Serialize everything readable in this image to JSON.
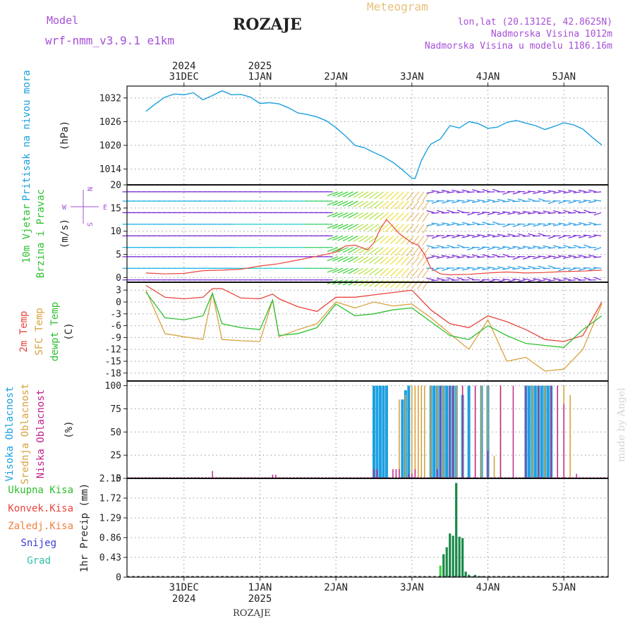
{
  "header": {
    "model_label": "Model",
    "model_name": "wrf-nmm_v3.9.1 e1km",
    "title": "ROZAJE",
    "product": "Meteogram",
    "coords": "lon,lat (20.1312E, 42.8625N)",
    "elevation": "Nadmorska Visina 1012m",
    "model_elevation": "Nadmorska Visina u modelu 1186.16m",
    "footer_station": "ROZAJE",
    "credit": "made by Angel"
  },
  "colors": {
    "pressure": "#1ca0e0",
    "temp2m": "#e8453c",
    "sfc": "#d8a23e",
    "dewpt": "#2fbf2f",
    "high_cloud": "#1ca0e0",
    "mid_cloud": "#d8a23e",
    "low_cloud": "#c0208a",
    "precip": "#1a8a4a",
    "wind_line": "#e8453c",
    "purple": "#a64fd6"
  },
  "time_axis": {
    "top_years": [
      "2024",
      "2025"
    ],
    "top_days": [
      "31DEC",
      "1JAN",
      "2JAN",
      "3JAN",
      "4JAN",
      "5JAN"
    ],
    "bottom_days": [
      "31DEC",
      "1JAN",
      "2JAN",
      "3JAN",
      "4JAN",
      "5JAN"
    ],
    "bottom_years": [
      "2024",
      "2025"
    ]
  },
  "chart_data": [
    {
      "type": "line",
      "panel": "pressure",
      "ylabel_lines": [
        "Pritisak na nivou mora"
      ],
      "unit": "(hPa)",
      "yticks": [
        "1032",
        "1026",
        "1020",
        "1014"
      ],
      "ylim": [
        1010,
        1035
      ],
      "x_hours": [
        0,
        3,
        6,
        9,
        12,
        15,
        18,
        21,
        24,
        27,
        30,
        33,
        36,
        39,
        42,
        45,
        48,
        51,
        54,
        57,
        60,
        63,
        66,
        69,
        72,
        75,
        78,
        81,
        84,
        85,
        87,
        89,
        90,
        93,
        96,
        99,
        102,
        105,
        108,
        111,
        114,
        117,
        120,
        123,
        126,
        129,
        132,
        135,
        138,
        141,
        144
      ],
      "values": [
        1028.6,
        1030.5,
        1032.2,
        1033.0,
        1032.8,
        1033.3,
        1031.5,
        1032.6,
        1033.8,
        1032.8,
        1032.9,
        1032.2,
        1030.6,
        1030.8,
        1030.5,
        1029.5,
        1028.2,
        1027.8,
        1027.2,
        1026.2,
        1024.5,
        1022.4,
        1020.0,
        1019.4,
        1018.2,
        1017.1,
        1015.7,
        1013.8,
        1011.7,
        1011.6,
        1016.2,
        1019.2,
        1020.3,
        1021.6,
        1025.0,
        1024.4,
        1026.0,
        1025.5,
        1024.3,
        1024.6,
        1025.8,
        1026.3,
        1025.6,
        1025.0,
        1024.0,
        1024.8,
        1025.7,
        1025.2,
        1024.1,
        1022.0,
        1020.1
      ]
    },
    {
      "type": "line",
      "panel": "wind",
      "ylabel_lines": [
        "10m Vjetar",
        "Brzina i Pravac"
      ],
      "unit": "(m/s)",
      "compass": [
        "W",
        "E",
        "N",
        "S"
      ],
      "yticks": [
        "20",
        "15",
        "10",
        "5",
        "0"
      ],
      "ylim": [
        -1,
        20
      ],
      "x_hours": [
        0,
        6,
        12,
        18,
        24,
        30,
        36,
        42,
        48,
        54,
        60,
        63,
        66,
        70,
        72,
        74,
        76,
        78,
        80,
        82,
        84,
        86,
        88,
        90,
        93,
        96,
        102,
        108,
        114,
        120,
        126,
        132,
        138,
        144
      ],
      "values": [
        1.0,
        0.8,
        0.9,
        1.5,
        1.6,
        1.8,
        2.5,
        3.0,
        3.8,
        4.6,
        5.5,
        6.8,
        7.0,
        6.0,
        7.5,
        10.5,
        12.5,
        11.0,
        9.5,
        8.5,
        7.5,
        7.0,
        5.0,
        2.0,
        0.8,
        0.6,
        0.7,
        1.0,
        1.2,
        1.0,
        1.1,
        1.3,
        1.4,
        1.6
      ]
    },
    {
      "type": "line",
      "panel": "temperature",
      "ylabel_lines": [
        "2m Temp",
        "SFC Temp",
        "dewpt Temp"
      ],
      "unit": "(C)",
      "yticks": [
        "3",
        "0",
        "-3",
        "-6",
        "-9",
        "-12",
        "-15",
        "-18"
      ],
      "ylim": [
        -20,
        5
      ],
      "x_hours": [
        0,
        6,
        12,
        18,
        21,
        24,
        30,
        36,
        40,
        42,
        48,
        54,
        60,
        66,
        72,
        78,
        84,
        90,
        96,
        102,
        108,
        114,
        120,
        126,
        132,
        138,
        144
      ],
      "series": [
        {
          "name": "2m Temp",
          "values": [
            4.2,
            1.2,
            0.8,
            1.2,
            3.4,
            3.4,
            1.0,
            0.8,
            2.0,
            0.8,
            -1.2,
            -2.4,
            1.2,
            1.2,
            1.8,
            2.4,
            3.0,
            -2.0,
            -5.5,
            -6.5,
            -3.5,
            -5.0,
            -7.0,
            -9.5,
            -10.0,
            -8.5,
            0.0
          ]
        },
        {
          "name": "SFC Temp",
          "values": [
            3.0,
            -8.0,
            -8.8,
            -9.5,
            2.3,
            -9.5,
            -9.8,
            -10.0,
            0.5,
            -8.8,
            -7.0,
            -5.5,
            0.0,
            -1.5,
            0.0,
            -1.0,
            -0.5,
            -4.0,
            -8.0,
            -12.0,
            -4.5,
            -15.0,
            -14.0,
            -17.5,
            -17.0,
            -12.0,
            -0.5
          ]
        },
        {
          "name": "dewpt Temp",
          "values": [
            2.5,
            -4.0,
            -4.5,
            -3.5,
            2.2,
            -5.5,
            -6.5,
            -7.0,
            0.5,
            -8.5,
            -8.0,
            -6.5,
            -0.5,
            -3.5,
            -3.0,
            -2.0,
            -1.5,
            -5.0,
            -8.5,
            -9.5,
            -6.0,
            -8.5,
            -10.5,
            -11.0,
            -11.5,
            -7.0,
            -3.5
          ]
        }
      ]
    },
    {
      "type": "bar",
      "panel": "cloud",
      "ylabel_lines": [
        "Visoka Oblacnost",
        "Srednja Oblacnost",
        "Niska Oblacnost"
      ],
      "unit": "(%)",
      "yticks": [
        "100",
        "75",
        "50",
        "25",
        "0"
      ],
      "ylim": [
        0,
        105
      ],
      "series": [
        {
          "name": "Visoka Oblacnost",
          "x_hours": [
            72,
            73,
            74,
            75,
            76,
            81,
            82,
            83,
            90,
            91,
            92,
            93,
            94,
            95,
            96,
            97,
            98,
            100,
            102,
            106,
            108,
            120,
            121,
            122,
            123,
            124,
            125,
            126,
            127,
            128
          ],
          "values": [
            100,
            100,
            100,
            100,
            100,
            85,
            95,
            100,
            100,
            100,
            100,
            100,
            100,
            100,
            100,
            100,
            100,
            90,
            100,
            100,
            100,
            100,
            100,
            100,
            100,
            100,
            100,
            100,
            100,
            100
          ]
        },
        {
          "name": "Srednja Oblacnost",
          "x_hours": [
            80,
            82,
            84,
            85,
            86,
            87,
            88,
            90,
            92,
            94,
            96,
            98,
            100,
            104,
            106,
            108,
            110,
            112,
            122,
            124,
            126,
            128,
            130,
            132,
            134
          ],
          "values": [
            85,
            90,
            100,
            100,
            100,
            100,
            100,
            100,
            100,
            100,
            100,
            100,
            100,
            100,
            100,
            100,
            24,
            100,
            100,
            100,
            100,
            100,
            100,
            100,
            90
          ]
        },
        {
          "name": "Niska Oblacnost",
          "x_hours": [
            21,
            40,
            41,
            72,
            73,
            78,
            79,
            80,
            83,
            84,
            85,
            92,
            93,
            96,
            97,
            100,
            104,
            108,
            112,
            116,
            120,
            124,
            128,
            130,
            132,
            136
          ],
          "values": [
            8,
            4,
            4,
            10,
            10,
            10,
            10,
            10,
            5,
            5,
            10,
            10,
            100,
            100,
            100,
            100,
            100,
            30,
            100,
            100,
            100,
            100,
            100,
            100,
            80,
            5
          ]
        }
      ]
    },
    {
      "type": "bar",
      "panel": "precipitation",
      "ylabel_lines": [
        "1hr Precip (mm)"
      ],
      "legend": [
        "Ukupna Kisa",
        "Konvek.Kisa",
        "Zaledj.Kisa",
        "Snijeg",
        "Grad"
      ],
      "yticks": [
        "2.15",
        "1.72",
        "1.29",
        "0.86",
        "0.43",
        "0"
      ],
      "ylim": [
        0,
        2.15
      ],
      "x_hours": [
        93,
        94,
        95,
        96,
        97,
        98,
        99,
        100,
        101,
        102,
        103,
        104,
        105,
        106
      ],
      "values": [
        0.25,
        0.5,
        0.65,
        0.95,
        0.9,
        2.05,
        0.88,
        0.85,
        0.12,
        0.05,
        0.02,
        0.05,
        0.01,
        0.02
      ]
    }
  ]
}
